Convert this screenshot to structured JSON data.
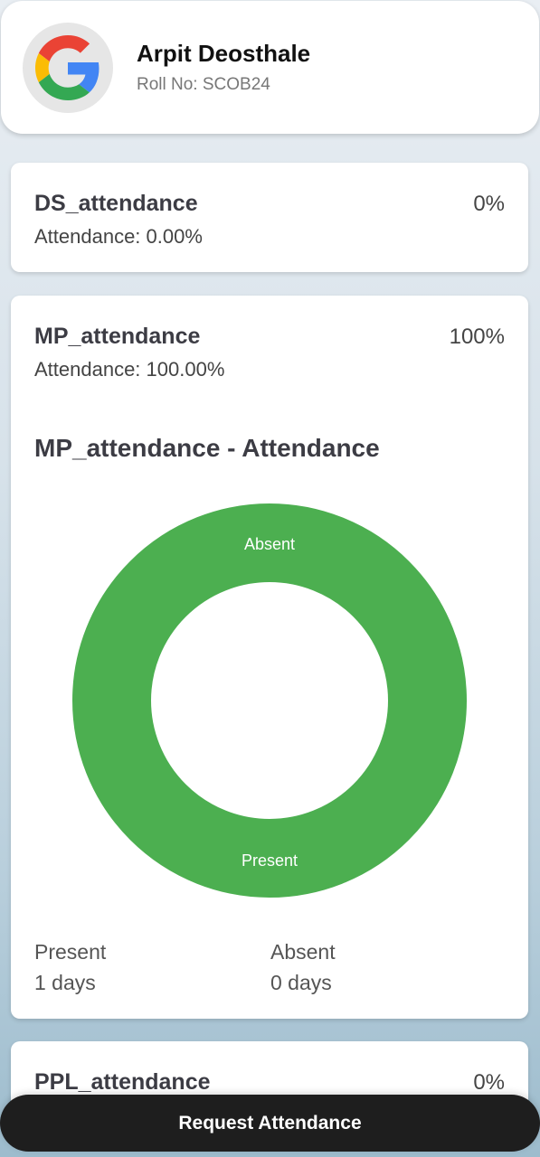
{
  "profile": {
    "name": "Arpit Deosthale",
    "roll": "Roll No: SCOB24",
    "avatar_icon": "google-logo-icon"
  },
  "subjects": [
    {
      "title": "DS_attendance",
      "percent": "0%",
      "attendance": "Attendance: 0.00%"
    },
    {
      "title": "MP_attendance",
      "percent": "100%",
      "attendance": "Attendance: 100.00%"
    },
    {
      "title": "PPL_attendance",
      "percent": "0%"
    }
  ],
  "chart": {
    "title": "MP_attendance - Attendance",
    "label_absent": "Absent",
    "label_present": "Present",
    "present_label": "Present",
    "present_value": "1 days",
    "absent_label": "Absent",
    "absent_value": "0 days"
  },
  "chart_data": {
    "type": "pie",
    "title": "MP_attendance - Attendance",
    "categories": [
      "Present",
      "Absent"
    ],
    "values": [
      1,
      0
    ],
    "colors": [
      "#4caf50",
      "#f44336"
    ]
  },
  "colors": {
    "present": "#4caf50",
    "button": "#1e1e1e"
  },
  "button": {
    "label": "Request Attendance"
  }
}
